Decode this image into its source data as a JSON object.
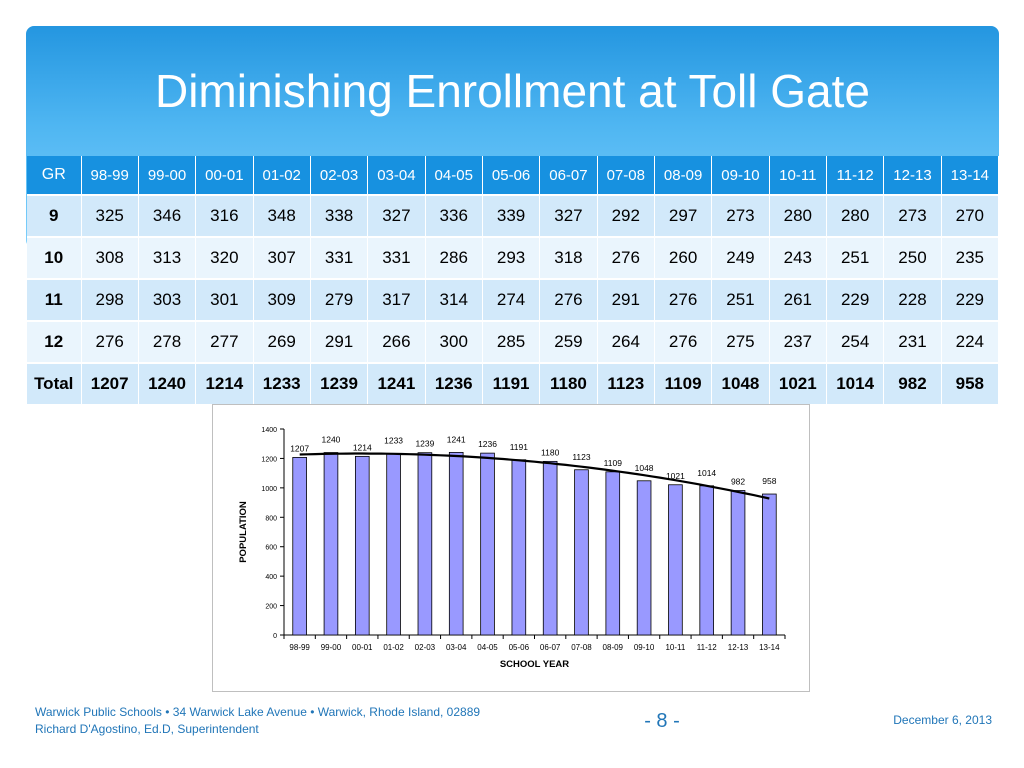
{
  "title": "Diminishing Enrollment at Toll Gate",
  "table": {
    "header_label": "GR",
    "years": [
      "98-99",
      "99-00",
      "00-01",
      "01-02",
      "02-03",
      "03-04",
      "04-05",
      "05-06",
      "06-07",
      "07-08",
      "08-09",
      "09-10",
      "10-11",
      "11-12",
      "12-13",
      "13-14"
    ],
    "rows": [
      {
        "label": "9",
        "values": [
          "325",
          "346",
          "316",
          "348",
          "338",
          "327",
          "336",
          "339",
          "327",
          "292",
          "297",
          "273",
          "280",
          "280",
          "273",
          "270"
        ]
      },
      {
        "label": "10",
        "values": [
          "308",
          "313",
          "320",
          "307",
          "331",
          "331",
          "286",
          "293",
          "318",
          "276",
          "260",
          "249",
          "243",
          "251",
          "250",
          "235"
        ]
      },
      {
        "label": "11",
        "values": [
          "298",
          "303",
          "301",
          "309",
          "279",
          "317",
          "314",
          "274",
          "276",
          "291",
          "276",
          "251",
          "261",
          "229",
          "228",
          "229"
        ]
      },
      {
        "label": "12",
        "values": [
          "276",
          "278",
          "277",
          "269",
          "291",
          "266",
          "300",
          "285",
          "259",
          "264",
          "276",
          "275",
          "237",
          "254",
          "231",
          "224"
        ]
      },
      {
        "label": "Total",
        "values": [
          "1207",
          "1240",
          "1214",
          "1233",
          "1239",
          "1241",
          "1236",
          "1191",
          "1180",
          "1123",
          "1109",
          "1048",
          "1021",
          "1014",
          "982",
          "958"
        ]
      }
    ]
  },
  "chart_data": {
    "type": "bar",
    "categories": [
      "98-99",
      "99-00",
      "00-01",
      "01-02",
      "02-03",
      "03-04",
      "04-05",
      "05-06",
      "06-07",
      "07-08",
      "08-09",
      "09-10",
      "10-11",
      "11-12",
      "12-13",
      "13-14"
    ],
    "values": [
      1207,
      1240,
      1214,
      1233,
      1239,
      1241,
      1236,
      1191,
      1180,
      1123,
      1109,
      1048,
      1021,
      1014,
      982,
      958
    ],
    "xlabel": "SCHOOL YEAR",
    "ylabel": "POPULATION",
    "ylim": [
      0,
      1400
    ],
    "yticks": [
      0,
      200,
      400,
      600,
      800,
      1000,
      1200,
      1400
    ],
    "trendline": true,
    "bar_color": "#9999ff",
    "grid": false,
    "legend": false
  },
  "footer": {
    "line1": "Warwick Public Schools • 34 Warwick Lake Avenue • Warwick, Rhode Island, 02889",
    "line2": "Richard D'Agostino, Ed.D, Superintendent",
    "page": "- 8 -",
    "date": "December 6, 2013"
  },
  "colors": {
    "header_blue": "#2496e0",
    "table_header": "#1791e0",
    "row_light": "#d2e9fa",
    "row_lighter": "#eaf5fd",
    "footer_text": "#2176b8"
  }
}
